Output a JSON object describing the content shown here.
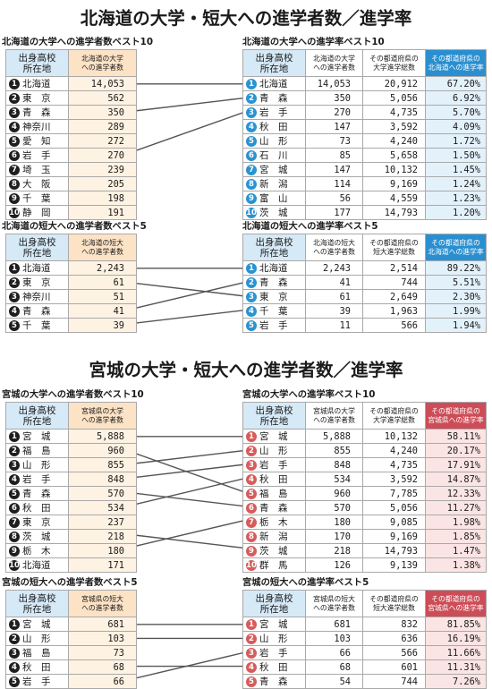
{
  "hokkaido": {
    "title": "北海道の大学・短大への進学者数／進学率",
    "univ_count": {
      "subtitle": "北海道の大学への進学者数ベスト10",
      "head_pref": "出身高校\n所在地",
      "head_value": "北海道の大学\nへの進学者数",
      "rows": [
        {
          "rank": "1",
          "pref": "北海道",
          "value": "14,053"
        },
        {
          "rank": "2",
          "pref": "東　京",
          "value": "562"
        },
        {
          "rank": "3",
          "pref": "青　森",
          "value": "350"
        },
        {
          "rank": "4",
          "pref": "神奈川",
          "value": "289"
        },
        {
          "rank": "5",
          "pref": "愛　知",
          "value": "272"
        },
        {
          "rank": "6",
          "pref": "岩　手",
          "value": "270"
        },
        {
          "rank": "7",
          "pref": "埼　玉",
          "value": "239"
        },
        {
          "rank": "8",
          "pref": "大　阪",
          "value": "205"
        },
        {
          "rank": "9",
          "pref": "千　葉",
          "value": "198"
        },
        {
          "rank": "10",
          "pref": "静　岡",
          "value": "191"
        }
      ]
    },
    "univ_rate": {
      "subtitle": "北海道の大学への進学率ベスト10",
      "head_pref": "出身高校\n所在地",
      "head_value": "北海道の大学\nへの進学者数",
      "head_total": "その都道府県の\n大学進学総数",
      "head_rate": "その都道府県の\n北海道への進学率",
      "rows": [
        {
          "rank": "1",
          "pref": "北海道",
          "value": "14,053",
          "total": "20,912",
          "rate": "67.20%"
        },
        {
          "rank": "2",
          "pref": "青　森",
          "value": "350",
          "total": "5,056",
          "rate": "6.92%"
        },
        {
          "rank": "3",
          "pref": "岩　手",
          "value": "270",
          "total": "4,735",
          "rate": "5.70%"
        },
        {
          "rank": "4",
          "pref": "秋　田",
          "value": "147",
          "total": "3,592",
          "rate": "4.09%"
        },
        {
          "rank": "5",
          "pref": "山　形",
          "value": "73",
          "total": "4,240",
          "rate": "1.72%"
        },
        {
          "rank": "6",
          "pref": "石　川",
          "value": "85",
          "total": "5,658",
          "rate": "1.50%"
        },
        {
          "rank": "7",
          "pref": "宮　城",
          "value": "147",
          "total": "10,132",
          "rate": "1.45%"
        },
        {
          "rank": "8",
          "pref": "新　潟",
          "value": "114",
          "total": "9,169",
          "rate": "1.24%"
        },
        {
          "rank": "9",
          "pref": "富　山",
          "value": "56",
          "total": "4,559",
          "rate": "1.23%"
        },
        {
          "rank": "10",
          "pref": "茨　城",
          "value": "177",
          "total": "14,793",
          "rate": "1.20%"
        }
      ]
    },
    "junior_count": {
      "subtitle": "北海道の短大への進学者数ベスト5",
      "head_pref": "出身高校\n所在地",
      "head_value": "北海道の短大\nへの進学者数",
      "rows": [
        {
          "rank": "1",
          "pref": "北海道",
          "value": "2,243"
        },
        {
          "rank": "2",
          "pref": "東　京",
          "value": "61"
        },
        {
          "rank": "3",
          "pref": "神奈川",
          "value": "51"
        },
        {
          "rank": "4",
          "pref": "青　森",
          "value": "41"
        },
        {
          "rank": "5",
          "pref": "千　葉",
          "value": "39"
        }
      ]
    },
    "junior_rate": {
      "subtitle": "北海道の短大への進学率ベスト5",
      "head_pref": "出身高校\n所在地",
      "head_value": "北海道の短大\nへの進学者数",
      "head_total": "その都道府県の\n短大進学総数",
      "head_rate": "その都道府県の\n北海道への進学率",
      "rows": [
        {
          "rank": "1",
          "pref": "北海道",
          "value": "2,243",
          "total": "2,514",
          "rate": "89.22%"
        },
        {
          "rank": "2",
          "pref": "青　森",
          "value": "41",
          "total": "744",
          "rate": "5.51%"
        },
        {
          "rank": "3",
          "pref": "東　京",
          "value": "61",
          "total": "2,649",
          "rate": "2.30%"
        },
        {
          "rank": "4",
          "pref": "千　葉",
          "value": "39",
          "total": "1,963",
          "rate": "1.99%"
        },
        {
          "rank": "5",
          "pref": "岩　手",
          "value": "11",
          "total": "566",
          "rate": "1.94%"
        }
      ]
    }
  },
  "miyagi": {
    "title": "宮城の大学・短大への進学者数／進学率",
    "univ_count": {
      "subtitle": "宮城の大学への進学者数ベスト10",
      "head_pref": "出身高校\n所在地",
      "head_value": "宮城県の大学\nへの進学者数",
      "rows": [
        {
          "rank": "1",
          "pref": "宮　城",
          "value": "5,888"
        },
        {
          "rank": "2",
          "pref": "福　島",
          "value": "960"
        },
        {
          "rank": "3",
          "pref": "山　形",
          "value": "855"
        },
        {
          "rank": "4",
          "pref": "岩　手",
          "value": "848"
        },
        {
          "rank": "5",
          "pref": "青　森",
          "value": "570"
        },
        {
          "rank": "6",
          "pref": "秋　田",
          "value": "534"
        },
        {
          "rank": "7",
          "pref": "東　京",
          "value": "237"
        },
        {
          "rank": "8",
          "pref": "茨　城",
          "value": "218"
        },
        {
          "rank": "9",
          "pref": "栃　木",
          "value": "180"
        },
        {
          "rank": "10",
          "pref": "北海道",
          "value": "171"
        }
      ]
    },
    "univ_rate": {
      "subtitle": "宮城の大学への進学率ベスト10",
      "head_pref": "出身高校\n所在地",
      "head_value": "宮城県の大学\nへの進学者数",
      "head_total": "その都道府県の\n大学進学総数",
      "head_rate": "その都道府県の\n宮城県への進学率",
      "rows": [
        {
          "rank": "1",
          "pref": "宮　城",
          "value": "5,888",
          "total": "10,132",
          "rate": "58.11%"
        },
        {
          "rank": "2",
          "pref": "山　形",
          "value": "855",
          "total": "4,240",
          "rate": "20.17%"
        },
        {
          "rank": "3",
          "pref": "岩　手",
          "value": "848",
          "total": "4,735",
          "rate": "17.91%"
        },
        {
          "rank": "4",
          "pref": "秋　田",
          "value": "534",
          "total": "3,592",
          "rate": "14.87%"
        },
        {
          "rank": "5",
          "pref": "福　島",
          "value": "960",
          "total": "7,785",
          "rate": "12.33%"
        },
        {
          "rank": "6",
          "pref": "青　森",
          "value": "570",
          "total": "5,056",
          "rate": "11.27%"
        },
        {
          "rank": "7",
          "pref": "栃　木",
          "value": "180",
          "total": "9,085",
          "rate": "1.98%"
        },
        {
          "rank": "8",
          "pref": "新　潟",
          "value": "170",
          "total": "9,169",
          "rate": "1.85%"
        },
        {
          "rank": "9",
          "pref": "茨　城",
          "value": "218",
          "total": "14,793",
          "rate": "1.47%"
        },
        {
          "rank": "10",
          "pref": "群　馬",
          "value": "126",
          "total": "9,139",
          "rate": "1.38%"
        }
      ]
    },
    "junior_count": {
      "subtitle": "宮城の短大への進学者数ベスト5",
      "head_pref": "出身高校\n所在地",
      "head_value": "宮城県の短大\nへの進学者数",
      "rows": [
        {
          "rank": "1",
          "pref": "宮　城",
          "value": "681"
        },
        {
          "rank": "2",
          "pref": "山　形",
          "value": "103"
        },
        {
          "rank": "3",
          "pref": "福　島",
          "value": "73"
        },
        {
          "rank": "4",
          "pref": "秋　田",
          "value": "68"
        },
        {
          "rank": "5",
          "pref": "岩　手",
          "value": "66"
        }
      ]
    },
    "junior_rate": {
      "subtitle": "宮城の短大への進学率ベスト5",
      "head_pref": "出身高校\n所在地",
      "head_value": "宮城県の短大\nへの進学者数",
      "head_total": "その都道府県の\n短大進学総数",
      "head_rate": "その都道府県の\n宮城県への進学率",
      "rows": [
        {
          "rank": "1",
          "pref": "宮　城",
          "value": "681",
          "total": "832",
          "rate": "81.85%"
        },
        {
          "rank": "2",
          "pref": "山　形",
          "value": "103",
          "total": "636",
          "rate": "16.19%"
        },
        {
          "rank": "3",
          "pref": "岩　手",
          "value": "66",
          "total": "566",
          "rate": "11.66%"
        },
        {
          "rank": "4",
          "pref": "秋　田",
          "value": "68",
          "total": "601",
          "rate": "11.31%"
        },
        {
          "rank": "5",
          "pref": "青　森",
          "value": "54",
          "total": "744",
          "rate": "7.26%"
        }
      ]
    }
  },
  "links": {
    "hokkaido_univ": [
      [
        1,
        1
      ],
      [
        3,
        2
      ],
      [
        6,
        3
      ]
    ],
    "hokkaido_junior": [
      [
        1,
        1
      ],
      [
        2,
        3
      ],
      [
        4,
        2
      ],
      [
        5,
        4
      ]
    ],
    "miyagi_univ": [
      [
        1,
        1
      ],
      [
        2,
        5
      ],
      [
        3,
        2
      ],
      [
        4,
        3
      ],
      [
        5,
        6
      ],
      [
        6,
        4
      ],
      [
        8,
        9
      ],
      [
        9,
        7
      ]
    ],
    "miyagi_junior": [
      [
        1,
        1
      ],
      [
        2,
        2
      ],
      [
        4,
        4
      ],
      [
        5,
        3
      ]
    ]
  },
  "colors": {
    "head_blue": "#d6e9f7",
    "head_peach": "#fde3c6",
    "cell_peach": "#fef2e3",
    "cell_blue": "#e3f1fb",
    "cell_pink": "#fbe4e4",
    "badge_blue": "#2a93d0",
    "badge_red": "#d65c5c",
    "accent_blue": "#2a8fd0",
    "accent_red": "#cc4d57",
    "link_line": "#555555"
  }
}
